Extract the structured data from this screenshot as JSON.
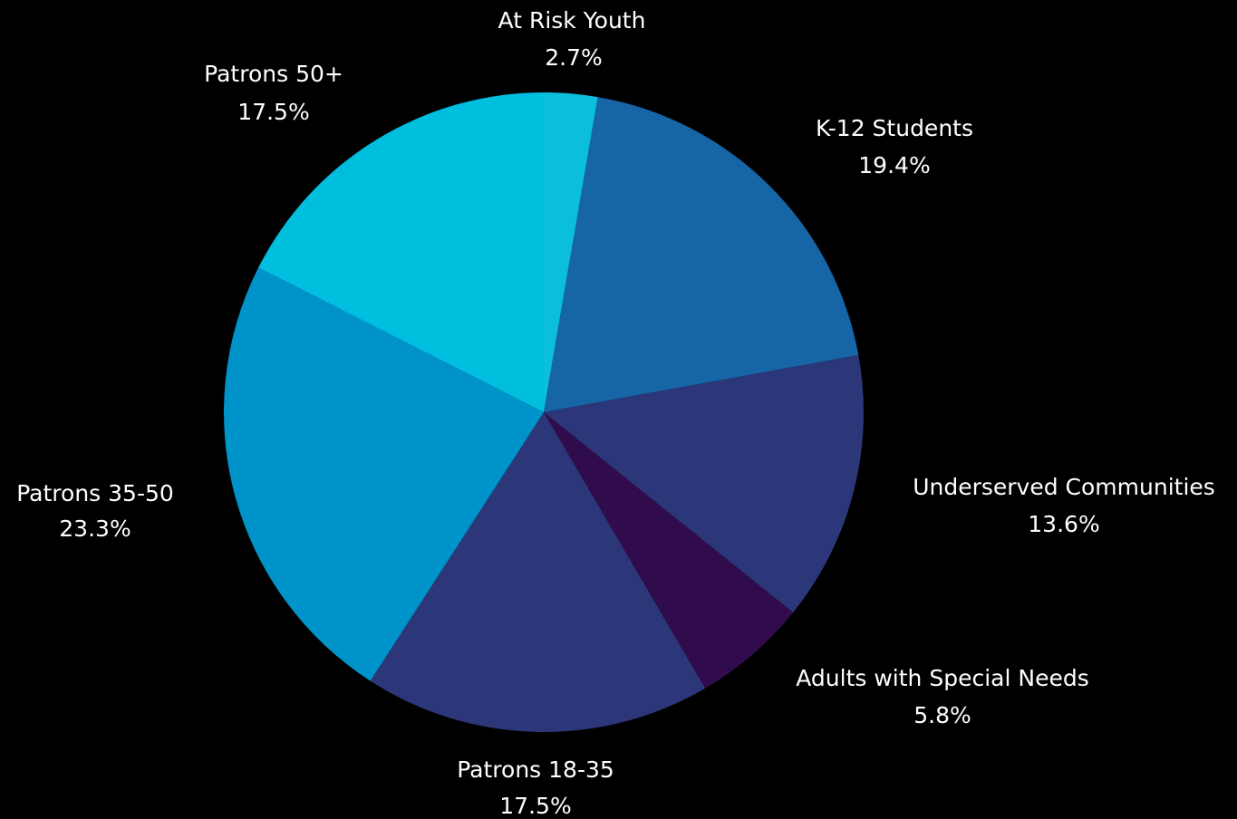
{
  "chart_data": {
    "type": "pie",
    "title": "",
    "slices": [
      {
        "label": "At Risk Youth",
        "value": 2.7,
        "display": "2.7%",
        "color": "#0BBEDE"
      },
      {
        "label": "K-12 Students",
        "value": 19.4,
        "display": "19.4%",
        "color": "#1665A6"
      },
      {
        "label": "Underserved Communities",
        "value": 13.6,
        "display": "13.6%",
        "color": "#2C377A"
      },
      {
        "label": "Adults with Special Needs",
        "value": 5.8,
        "display": "5.8%",
        "color": "#300C4C"
      },
      {
        "label": "Patrons 18-35",
        "value": 17.5,
        "display": "17.5%",
        "color": "#2C377A"
      },
      {
        "label": "Patrons 35-50",
        "value": 23.3,
        "display": "23.3%",
        "color": "#0093C9"
      },
      {
        "label": "Patrons 50+",
        "value": 17.5,
        "display": "17.5%",
        "color": "#00BEDE"
      }
    ],
    "background": "#000000",
    "label_color": "#FFFFFF",
    "start": "12 o'clock",
    "direction": "clockwise"
  }
}
